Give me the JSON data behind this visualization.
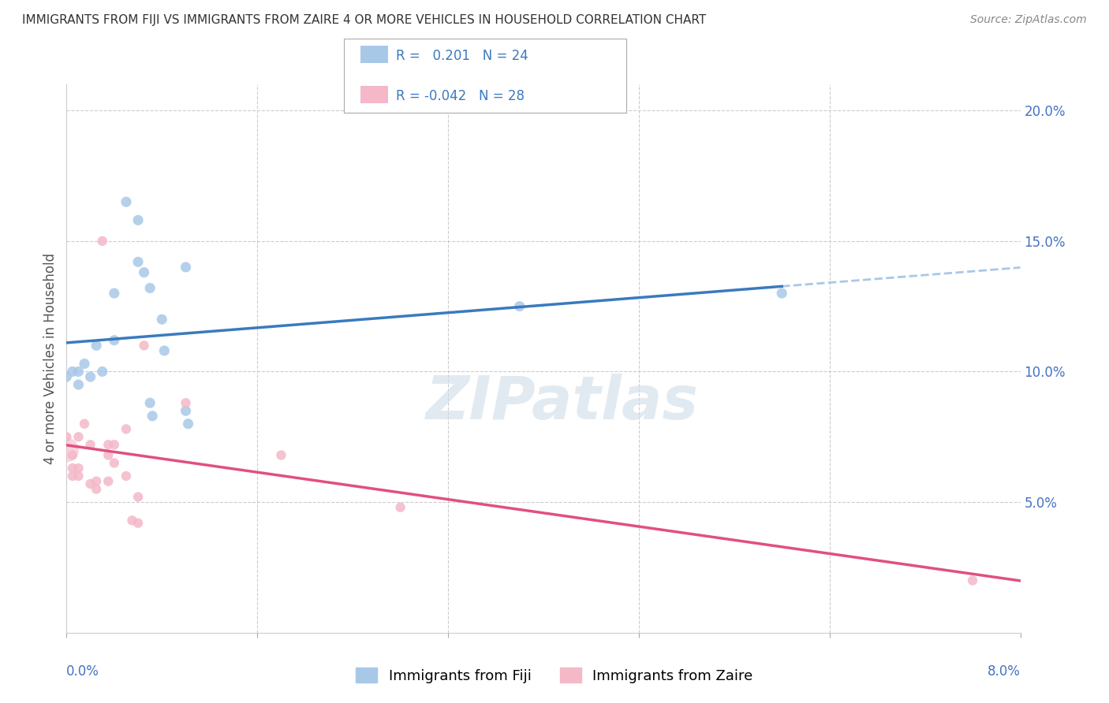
{
  "title": "IMMIGRANTS FROM FIJI VS IMMIGRANTS FROM ZAIRE 4 OR MORE VEHICLES IN HOUSEHOLD CORRELATION CHART",
  "source": "Source: ZipAtlas.com",
  "ylabel": "4 or more Vehicles in Household",
  "x_min": 0.0,
  "x_max": 0.08,
  "y_min": 0.0,
  "y_max": 0.21,
  "right_yticks": [
    0.05,
    0.1,
    0.15,
    0.2
  ],
  "right_yticklabels": [
    "5.0%",
    "10.0%",
    "15.0%",
    "20.0%"
  ],
  "fiji_R": 0.201,
  "fiji_N": 24,
  "zaire_R": -0.042,
  "zaire_N": 28,
  "fiji_color": "#a8c8e8",
  "zaire_color": "#f4b8c8",
  "fiji_line_color": "#3a7abf",
  "zaire_line_color": "#e05080",
  "dashed_line_color": "#a8c8e8",
  "fiji_points": [
    [
      0.0005,
      0.1
    ],
    [
      0.001,
      0.1
    ],
    [
      0.001,
      0.095
    ],
    [
      0.0015,
      0.103
    ],
    [
      0.002,
      0.098
    ],
    [
      0.0025,
      0.11
    ],
    [
      0.003,
      0.1
    ],
    [
      0.004,
      0.13
    ],
    [
      0.004,
      0.112
    ],
    [
      0.005,
      0.165
    ],
    [
      0.006,
      0.158
    ],
    [
      0.006,
      0.142
    ],
    [
      0.0065,
      0.138
    ],
    [
      0.007,
      0.132
    ],
    [
      0.007,
      0.088
    ],
    [
      0.0072,
      0.083
    ],
    [
      0.008,
      0.12
    ],
    [
      0.0082,
      0.108
    ],
    [
      0.01,
      0.14
    ],
    [
      0.01,
      0.085
    ],
    [
      0.0102,
      0.08
    ],
    [
      0.0,
      0.098
    ],
    [
      0.038,
      0.125
    ],
    [
      0.06,
      0.13
    ]
  ],
  "zaire_points": [
    [
      0.0,
      0.075
    ],
    [
      0.0005,
      0.068
    ],
    [
      0.0005,
      0.063
    ],
    [
      0.0005,
      0.06
    ],
    [
      0.001,
      0.075
    ],
    [
      0.001,
      0.063
    ],
    [
      0.001,
      0.06
    ],
    [
      0.0015,
      0.08
    ],
    [
      0.002,
      0.072
    ],
    [
      0.002,
      0.057
    ],
    [
      0.0025,
      0.058
    ],
    [
      0.0025,
      0.055
    ],
    [
      0.003,
      0.15
    ],
    [
      0.0035,
      0.072
    ],
    [
      0.0035,
      0.068
    ],
    [
      0.0035,
      0.058
    ],
    [
      0.004,
      0.072
    ],
    [
      0.004,
      0.065
    ],
    [
      0.005,
      0.078
    ],
    [
      0.005,
      0.06
    ],
    [
      0.0055,
      0.043
    ],
    [
      0.006,
      0.052
    ],
    [
      0.006,
      0.042
    ],
    [
      0.0065,
      0.11
    ],
    [
      0.01,
      0.088
    ],
    [
      0.018,
      0.068
    ],
    [
      0.028,
      0.048
    ],
    [
      0.076,
      0.02
    ]
  ],
  "fiji_scatter_size": 90,
  "zaire_scatter_size": 80,
  "background_color": "#ffffff",
  "grid_color": "#cccccc",
  "watermark_text": "ZIPatlas",
  "watermark_color": "#d0dce8"
}
